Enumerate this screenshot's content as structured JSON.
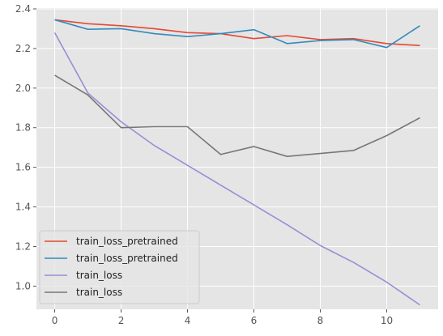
{
  "chart_data": {
    "type": "line",
    "x": [
      0,
      1,
      2,
      3,
      4,
      5,
      6,
      7,
      8,
      9,
      10,
      11
    ],
    "series": [
      {
        "name": "train_loss_pretrained",
        "color": "#E24A33",
        "values": [
          2.345,
          2.325,
          2.315,
          2.3,
          2.28,
          2.275,
          2.25,
          2.265,
          2.245,
          2.25,
          2.225,
          2.215
        ]
      },
      {
        "name": "train_loss_pretrained",
        "color": "#348ABD",
        "values": [
          2.345,
          2.297,
          2.3,
          2.275,
          2.26,
          2.275,
          2.295,
          2.225,
          2.24,
          2.245,
          2.205,
          2.315
        ]
      },
      {
        "name": "train_loss",
        "color": "#988ED5",
        "values": [
          2.28,
          1.975,
          1.83,
          1.71,
          1.61,
          1.51,
          1.41,
          1.31,
          1.205,
          1.12,
          1.02,
          0.905
        ]
      },
      {
        "name": "train_loss",
        "color": "#777777",
        "values": [
          2.065,
          1.965,
          1.8,
          1.805,
          1.805,
          1.665,
          1.705,
          1.655,
          1.67,
          1.685,
          1.76,
          1.85
        ]
      }
    ],
    "xticks": [
      "0",
      "2",
      "4",
      "6",
      "8",
      "10"
    ],
    "yticks": [
      "1.0",
      "1.2",
      "1.4",
      "1.6",
      "1.8",
      "2.0",
      "2.2",
      "2.4"
    ],
    "xlim": [
      -0.55,
      11.55
    ],
    "ylim": [
      0.883,
      2.404
    ],
    "grid": true,
    "legend_position": "lower-left",
    "style": "ggplot"
  }
}
